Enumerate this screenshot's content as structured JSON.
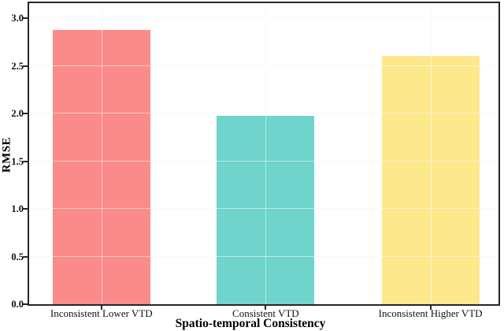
{
  "chart_data": {
    "type": "bar",
    "title": "",
    "categories": [
      "Inconsistent Lower VTD",
      "Consistent VTD",
      "Inconsistent Higher VTD"
    ],
    "values": [
      2.88,
      1.98,
      2.61
    ],
    "bar_colors": [
      "#FB8B8B",
      "#6ED4CC",
      "#FDE98B"
    ],
    "xlabel": "Spatio-temporal Consistency",
    "ylabel": "RMSE",
    "ylim": [
      0,
      3.16
    ],
    "yticks": [
      0.0,
      0.5,
      1.0,
      1.5,
      2.0,
      2.5,
      3.0
    ],
    "ytick_labels": [
      "0.0",
      "0.5",
      "1.0",
      "1.5",
      "2.0",
      "2.5",
      "3.0"
    ],
    "grid": "on",
    "legend": "none"
  },
  "styles": {
    "axis_color": "#262626",
    "grid_color": "#f2f2f2",
    "background": "#ffffff",
    "text_color": "#111111"
  }
}
